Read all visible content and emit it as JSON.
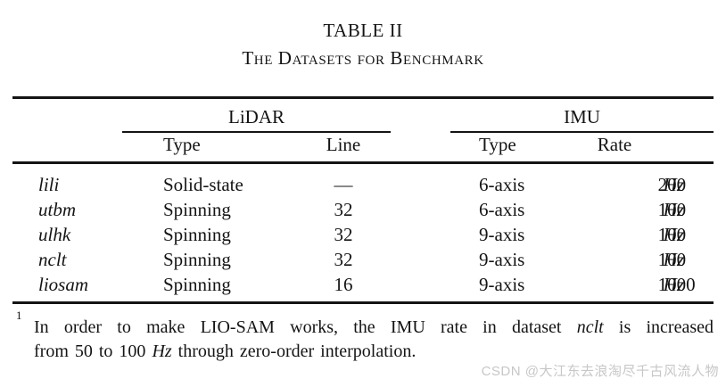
{
  "caption": {
    "number": "TABLE II",
    "title": "The Datasets for Benchmark"
  },
  "table": {
    "col_groups": [
      {
        "label": "LiDAR",
        "subcolumns": [
          "Type",
          "Line"
        ]
      },
      {
        "label": "IMU",
        "subcolumns": [
          "Type",
          "Rate"
        ]
      }
    ],
    "rows": [
      {
        "name": "lili",
        "lidar_type": "Solid-state",
        "lidar_line": "—",
        "imu_type": "6-axis",
        "imu_rate": "200",
        "imu_rate_unit": "Hz"
      },
      {
        "name": "utbm",
        "lidar_type": "Spinning",
        "lidar_line": "32",
        "imu_type": "6-axis",
        "imu_rate": "100",
        "imu_rate_unit": "Hz"
      },
      {
        "name": "ulhk",
        "lidar_type": "Spinning",
        "lidar_line": "32",
        "imu_type": "9-axis",
        "imu_rate": "100",
        "imu_rate_unit": "Hz"
      },
      {
        "name": "nclt",
        "lidar_type": "Spinning",
        "lidar_line": "32",
        "imu_type": "9-axis",
        "imu_rate": "100",
        "imu_rate_unit": "Hz"
      },
      {
        "name": "liosam",
        "lidar_type": "Spinning",
        "lidar_line": "16",
        "imu_type": "9-axis",
        "imu_rate": "1000",
        "imu_rate_unit": "Hz"
      }
    ]
  },
  "footnote": {
    "marker": "1",
    "line1": {
      "a": "In order to make LIO-SAM works, the IMU rate in dataset ",
      "i": "nclt",
      "b": " is increased"
    },
    "line2": {
      "a": "from 50 to 100 ",
      "i": "Hz",
      "b": " through zero-order interpolation."
    }
  },
  "watermark": {
    "text": "CSDN @大江东去浪淘尽千古风流人物"
  },
  "colors": {
    "text": "#141414",
    "background": "#ffffff",
    "rule": "#141414",
    "watermark": "#c7c7c7"
  }
}
